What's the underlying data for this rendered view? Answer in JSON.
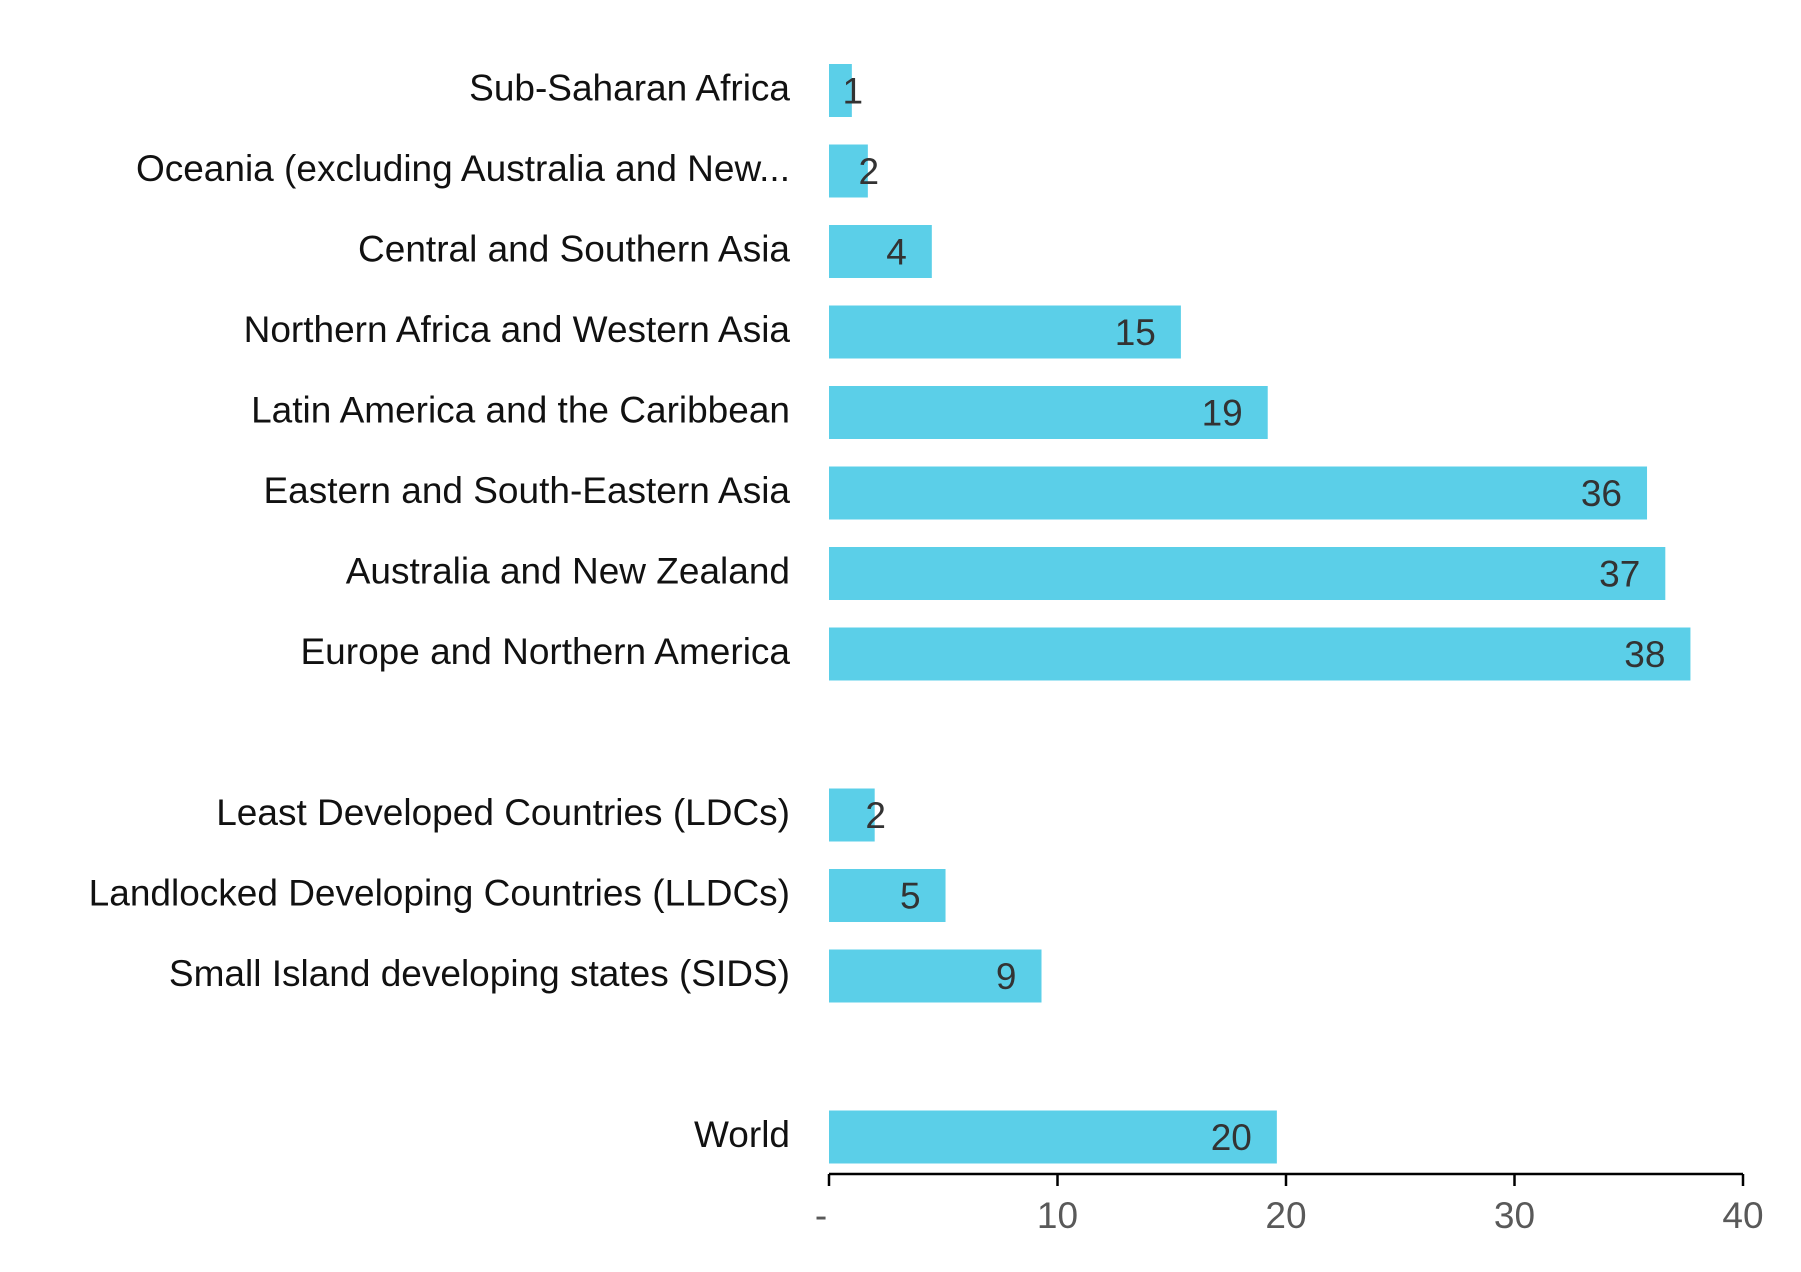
{
  "chart_data": {
    "type": "bar",
    "orientation": "horizontal",
    "title": "",
    "xlabel": "",
    "ylabel": "",
    "xlim": [
      0,
      40
    ],
    "grid": false,
    "legend": "none",
    "bar_color": "#5BCFE8",
    "groups": [
      {
        "bars": [
          {
            "category": "Sub-Saharan Africa",
            "value": 1,
            "label": "1"
          },
          {
            "category": "Oceania (excluding Australia and New...",
            "value": 1.7,
            "label": "2"
          },
          {
            "category": "Central and Southern Asia",
            "value": 4.5,
            "label": "4"
          },
          {
            "category": "Northern Africa and Western Asia",
            "value": 15.4,
            "label": "15"
          },
          {
            "category": "Latin America and the Caribbean",
            "value": 19.2,
            "label": "19"
          },
          {
            "category": "Eastern and South-Eastern Asia",
            "value": 35.8,
            "label": "36"
          },
          {
            "category": "Australia and New Zealand",
            "value": 36.6,
            "label": "37"
          },
          {
            "category": "Europe and Northern America",
            "value": 37.7,
            "label": "38"
          }
        ]
      },
      {
        "bars": [
          {
            "category": "Least Developed Countries (LDCs)",
            "value": 2,
            "label": "2"
          },
          {
            "category": "Landlocked Developing Countries (LLDCs)",
            "value": 5.1,
            "label": "5"
          },
          {
            "category": "Small Island developing states (SIDS)",
            "value": 9.3,
            "label": "9"
          }
        ]
      },
      {
        "bars": [
          {
            "category": "World",
            "value": 19.6,
            "label": "20"
          }
        ]
      }
    ],
    "x_ticks": [
      {
        "value": 0,
        "label": "-"
      },
      {
        "value": 10,
        "label": "10"
      },
      {
        "value": 20,
        "label": "20"
      },
      {
        "value": 30,
        "label": "30"
      },
      {
        "value": 40,
        "label": "40"
      }
    ]
  }
}
